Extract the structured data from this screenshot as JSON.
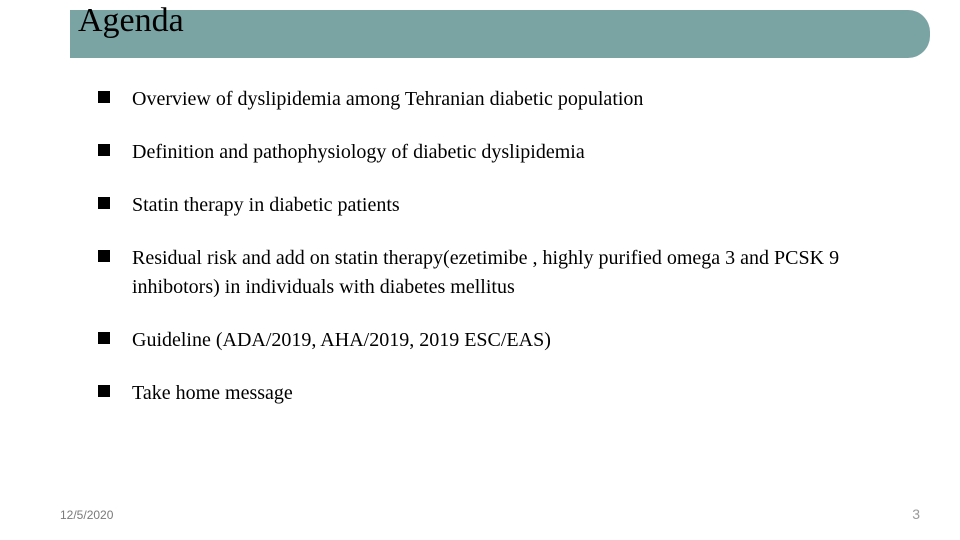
{
  "slide": {
    "title": "Agenda",
    "title_bar_color": "#7aa3a3",
    "title_font_size": 34,
    "background_color": "#ffffff",
    "bullets": [
      "Overview of dyslipidemia among Tehranian diabetic population",
      "Definition and pathophysiology of diabetic dyslipidemia",
      "Statin therapy in diabetic patients",
      "Residual risk and add on statin therapy(ezetimibe , highly purified omega 3 and  PCSK 9 inhibotors) in individuals with diabetes mellitus",
      "Guideline (ADA/2019, AHA/2019, 2019 ESC/EAS)",
      "Take home message"
    ],
    "bullet_marker_color": "#000000",
    "bullet_font_size": 20,
    "text_color": "#000000"
  },
  "footer": {
    "date": "12/5/2020",
    "page": "3",
    "date_color": "#7a7a7a",
    "page_color": "#9a9a9a"
  }
}
